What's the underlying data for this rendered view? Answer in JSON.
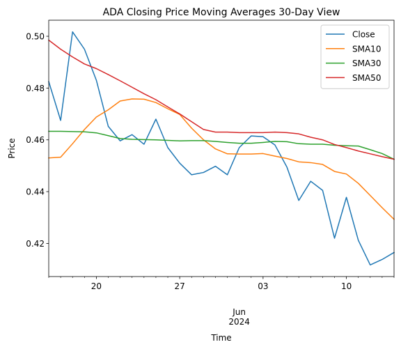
{
  "chart_data": {
    "type": "line",
    "title": "ADA Closing Price Moving Averages 30-Day View",
    "xlabel": "Time",
    "ylabel": "Price",
    "x_start": "2024-05-16",
    "x_end": "2024-06-14",
    "x": [
      "2024-05-16",
      "2024-05-17",
      "2024-05-18",
      "2024-05-19",
      "2024-05-20",
      "2024-05-21",
      "2024-05-22",
      "2024-05-23",
      "2024-05-24",
      "2024-05-25",
      "2024-05-26",
      "2024-05-27",
      "2024-05-28",
      "2024-05-29",
      "2024-05-30",
      "2024-05-31",
      "2024-06-01",
      "2024-06-02",
      "2024-06-03",
      "2024-06-04",
      "2024-06-05",
      "2024-06-06",
      "2024-06-07",
      "2024-06-08",
      "2024-06-09",
      "2024-06-10",
      "2024-06-11",
      "2024-06-12",
      "2024-06-13",
      "2024-06-14"
    ],
    "ylim": [
      0.4072,
      0.5062
    ],
    "y_ticks": [
      0.42,
      0.44,
      0.46,
      0.48,
      0.5
    ],
    "y_tick_labels": [
      "0.42",
      "0.44",
      "0.46",
      "0.48",
      "0.50"
    ],
    "x_ticks": [
      {
        "date": "2024-05-20",
        "label": "20"
      },
      {
        "date": "2024-05-27",
        "label": "27"
      },
      {
        "date": "2024-06-03",
        "label": "03"
      },
      {
        "date": "2024-06-10",
        "label": "10"
      }
    ],
    "x_minor_ticks": [
      "2024-05-16",
      "2024-05-17",
      "2024-05-18",
      "2024-05-19",
      "2024-05-21",
      "2024-05-22",
      "2024-05-23",
      "2024-05-24",
      "2024-05-25",
      "2024-05-26",
      "2024-05-28",
      "2024-05-29",
      "2024-05-30",
      "2024-05-31",
      "2024-06-01",
      "2024-06-02",
      "2024-06-04",
      "2024-06-05",
      "2024-06-06",
      "2024-06-07",
      "2024-06-08",
      "2024-06-09",
      "2024-06-11",
      "2024-06-12",
      "2024-06-13",
      "2024-06-14"
    ],
    "x_secondary_label": {
      "date": "2024-06-01",
      "lines": [
        "Jun",
        "2024"
      ]
    },
    "grid": false,
    "legend_position": "top-right",
    "series": [
      {
        "name": "Close",
        "color": "#1f77b4",
        "values": [
          0.4825,
          0.4675,
          0.5017,
          0.495,
          0.483,
          0.4652,
          0.4596,
          0.462,
          0.4583,
          0.468,
          0.457,
          0.451,
          0.4465,
          0.4474,
          0.4498,
          0.4465,
          0.457,
          0.4615,
          0.4612,
          0.458,
          0.4495,
          0.4366,
          0.444,
          0.4405,
          0.422,
          0.4378,
          0.4212,
          0.4117,
          0.4138,
          0.4165
        ]
      },
      {
        "name": "SMA10",
        "color": "#ff7f0e",
        "values": [
          0.453,
          0.4533,
          0.4585,
          0.464,
          0.4688,
          0.4716,
          0.475,
          0.4758,
          0.4757,
          0.4744,
          0.472,
          0.4698,
          0.4645,
          0.46,
          0.4565,
          0.4546,
          0.4545,
          0.4545,
          0.4547,
          0.4537,
          0.4528,
          0.4515,
          0.4512,
          0.4505,
          0.4478,
          0.4468,
          0.4432,
          0.4385,
          0.4338,
          0.4293
        ]
      },
      {
        "name": "SMA30",
        "color": "#2ca02c",
        "values": [
          0.4633,
          0.4633,
          0.4632,
          0.4631,
          0.4627,
          0.4616,
          0.4605,
          0.4602,
          0.4601,
          0.46,
          0.4598,
          0.4596,
          0.4597,
          0.4597,
          0.4594,
          0.459,
          0.4587,
          0.4587,
          0.459,
          0.4594,
          0.4593,
          0.4585,
          0.4583,
          0.4583,
          0.4579,
          0.4577,
          0.4576,
          0.4562,
          0.4547,
          0.4525
        ]
      },
      {
        "name": "SMA50",
        "color": "#d62728",
        "values": [
          0.4985,
          0.495,
          0.492,
          0.4893,
          0.4875,
          0.4852,
          0.4828,
          0.4803,
          0.4778,
          0.4755,
          0.4727,
          0.47,
          0.467,
          0.464,
          0.463,
          0.463,
          0.4628,
          0.4628,
          0.4628,
          0.463,
          0.4628,
          0.4623,
          0.461,
          0.46,
          0.4582,
          0.457,
          0.4557,
          0.4546,
          0.4535,
          0.4525
        ]
      }
    ]
  }
}
